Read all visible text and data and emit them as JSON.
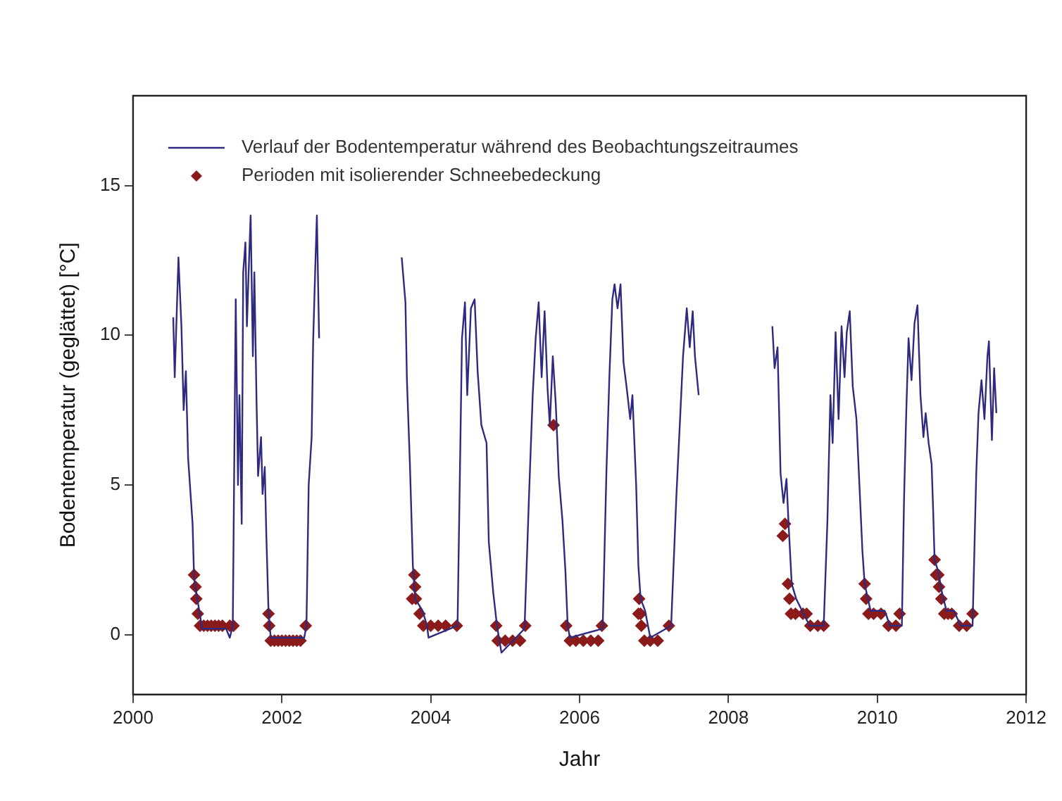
{
  "chart_data": {
    "type": "line",
    "xlabel": "Jahr",
    "ylabel": "Bodentemperatur (geglättet) [°C]",
    "xlim": [
      2000,
      2012
    ],
    "xticks": [
      2000,
      2002,
      2004,
      2006,
      2008,
      2010,
      2012
    ],
    "ylim": [
      -2,
      18
    ],
    "yticks": [
      0,
      5,
      10,
      15
    ],
    "grid": false,
    "legend": "top",
    "series": [
      {
        "name": "Verlauf der Bodentemperatur während des Beobachtungszeitraumes",
        "color": "#2e2a80",
        "marker": "none",
        "x": [
          2000.54,
          2000.56,
          2000.61,
          2000.65,
          2000.68,
          2000.71,
          2000.74,
          2000.8,
          2000.82,
          2000.87,
          2000.93,
          2001.25,
          2001.3,
          2001.34,
          2001.38,
          2001.41,
          2001.43,
          2001.46,
          2001.48,
          2001.51,
          2001.53,
          2001.56,
          2001.58,
          2001.61,
          2001.63,
          2001.66,
          2001.68,
          2001.72,
          2001.74,
          2001.77,
          2001.79,
          2001.82,
          2001.85,
          2002.3,
          2002.33,
          2002.36,
          2002.4,
          2002.42,
          2002.45,
          2002.47,
          2002.5,
          2003.0,
          2003.61,
          2003.66,
          2003.68,
          2003.72,
          2003.76,
          2003.79,
          2003.89,
          2003.95,
          2003.97,
          2004.36,
          2004.42,
          2004.46,
          2004.49,
          2004.54,
          2004.59,
          2004.63,
          2004.68,
          2004.75,
          2004.78,
          2004.84,
          2004.89,
          2004.95,
          2005.26,
          2005.32,
          2005.37,
          2005.41,
          2005.45,
          2005.49,
          2005.53,
          2005.57,
          2005.6,
          2005.64,
          2005.68,
          2005.72,
          2005.77,
          2005.81,
          2005.84,
          2005.87,
          2006.31,
          2006.36,
          2006.4,
          2006.44,
          2006.47,
          2006.51,
          2006.55,
          2006.59,
          2006.63,
          2006.68,
          2006.71,
          2006.76,
          2006.79,
          2006.82,
          2006.88,
          2006.95,
          2007.23,
          2007.3,
          2007.35,
          2007.39,
          2007.44,
          2007.48,
          2007.52,
          2007.55,
          2007.6,
          2008.1,
          2008.59,
          2008.62,
          2008.66,
          2008.7,
          2008.74,
          2008.78,
          2008.81,
          2008.85,
          2008.91,
          2008.99,
          2009.09,
          2009.28,
          2009.33,
          2009.37,
          2009.4,
          2009.44,
          2009.48,
          2009.52,
          2009.56,
          2009.59,
          2009.63,
          2009.67,
          2009.72,
          2009.76,
          2009.8,
          2009.83,
          2009.91,
          2010.1,
          2010.17,
          2010.33,
          2010.36,
          2010.39,
          2010.42,
          2010.46,
          2010.5,
          2010.54,
          2010.58,
          2010.62,
          2010.65,
          2010.69,
          2010.73,
          2010.75,
          2010.77,
          2010.82,
          2010.87,
          2010.93,
          2011.03,
          2011.12,
          2011.28,
          2011.33,
          2011.36,
          2011.4,
          2011.44,
          2011.48,
          2011.5,
          2011.54,
          2011.57,
          2011.6
        ],
        "values": [
          10.6,
          8.6,
          12.6,
          10.3,
          7.5,
          8.8,
          5.9,
          3.7,
          1.9,
          1.1,
          0.2,
          0.2,
          -0.1,
          0.3,
          11.2,
          5.0,
          8.0,
          3.7,
          12.1,
          13.1,
          10.3,
          12.6,
          14.0,
          9.3,
          12.1,
          7.7,
          5.3,
          6.6,
          4.7,
          5.6,
          3.4,
          0.8,
          -0.1,
          -0.1,
          0.3,
          5.0,
          6.6,
          9.8,
          12.4,
          14.0,
          9.9,
          null,
          12.6,
          11.1,
          8.5,
          5.7,
          2.3,
          1.2,
          0.8,
          0.3,
          -0.1,
          0.3,
          9.9,
          11.1,
          8.0,
          10.9,
          11.2,
          8.8,
          7.0,
          6.4,
          3.1,
          1.4,
          0.3,
          -0.6,
          0.2,
          4.6,
          8.0,
          9.9,
          11.1,
          8.6,
          10.8,
          8.2,
          7.0,
          9.3,
          7.7,
          5.3,
          3.8,
          2.1,
          0.3,
          -0.1,
          0.2,
          5.4,
          8.6,
          11.2,
          11.7,
          10.9,
          11.7,
          9.1,
          8.3,
          7.2,
          8.0,
          5.0,
          2.3,
          1.2,
          0.8,
          -0.1,
          0.3,
          4.6,
          7.2,
          9.3,
          10.9,
          9.6,
          10.8,
          9.3,
          8.0,
          null,
          10.3,
          8.9,
          9.6,
          5.4,
          4.4,
          5.2,
          3.6,
          1.7,
          1.2,
          0.8,
          0.3,
          0.3,
          3.8,
          8.0,
          6.4,
          10.1,
          7.2,
          10.3,
          8.6,
          10.1,
          10.8,
          8.3,
          7.2,
          5.0,
          2.8,
          1.7,
          0.8,
          0.8,
          0.3,
          0.3,
          4.6,
          7.5,
          9.9,
          8.5,
          10.4,
          11.0,
          8.0,
          6.6,
          7.4,
          6.4,
          5.7,
          4.2,
          2.5,
          2.1,
          1.4,
          0.8,
          0.8,
          0.3,
          0.3,
          5.4,
          7.4,
          8.5,
          7.2,
          9.3,
          9.8,
          6.5,
          8.9,
          7.4
        ]
      },
      {
        "name": "Perioden mit isolierender Schneebedeckung",
        "type": "scatter",
        "color": "#8b1a1a",
        "marker": "diamond",
        "x": [
          2000.82,
          2000.84,
          2000.85,
          2000.87,
          2000.9,
          2000.95,
          2001.0,
          2001.05,
          2001.1,
          2001.15,
          2001.2,
          2001.3,
          2001.35,
          2001.82,
          2001.83,
          2001.85,
          2001.9,
          2001.95,
          2002.0,
          2002.05,
          2002.1,
          2002.15,
          2002.2,
          2002.25,
          2002.32,
          2003.78,
          2003.79,
          2003.75,
          2003.8,
          2003.85,
          2003.9,
          2004.0,
          2004.1,
          2004.2,
          2004.35,
          2004.88,
          2004.9,
          2005.0,
          2005.1,
          2005.2,
          2005.27,
          2005.65,
          2005.82,
          2005.87,
          2005.95,
          2006.05,
          2006.15,
          2006.25,
          2006.3,
          2006.8,
          2006.79,
          2006.82,
          2006.83,
          2006.87,
          2006.95,
          2007.05,
          2007.2,
          2008.73,
          2008.76,
          2008.8,
          2008.82,
          2008.84,
          2008.9,
          2009.0,
          2009.05,
          2009.1,
          2009.2,
          2009.28,
          2009.83,
          2009.85,
          2009.88,
          2009.95,
          2010.05,
          2010.15,
          2010.25,
          2010.3,
          2010.77,
          2010.79,
          2010.82,
          2010.83,
          2010.86,
          2010.9,
          2010.95,
          2011.0,
          2011.1,
          2011.2,
          2011.28
        ],
        "values": [
          2.0,
          1.6,
          1.2,
          0.7,
          0.3,
          0.3,
          0.3,
          0.3,
          0.3,
          0.3,
          0.3,
          0.3,
          0.3,
          0.7,
          0.3,
          -0.2,
          -0.2,
          -0.2,
          -0.2,
          -0.2,
          -0.2,
          -0.2,
          -0.2,
          -0.2,
          0.3,
          2.0,
          1.6,
          1.2,
          1.2,
          0.7,
          0.3,
          0.3,
          0.3,
          0.3,
          0.3,
          0.3,
          -0.2,
          -0.2,
          -0.2,
          -0.2,
          0.3,
          7.0,
          0.3,
          -0.2,
          -0.2,
          -0.2,
          -0.2,
          -0.2,
          0.3,
          1.2,
          0.7,
          0.7,
          0.3,
          -0.2,
          -0.2,
          -0.2,
          0.3,
          3.3,
          3.7,
          1.7,
          1.2,
          0.7,
          0.7,
          0.7,
          0.7,
          0.3,
          0.3,
          0.3,
          1.7,
          1.2,
          0.7,
          0.7,
          0.7,
          0.3,
          0.3,
          0.7,
          2.5,
          2.0,
          2.0,
          1.6,
          1.2,
          0.7,
          0.7,
          0.7,
          0.3,
          0.3,
          0.7
        ]
      }
    ]
  }
}
